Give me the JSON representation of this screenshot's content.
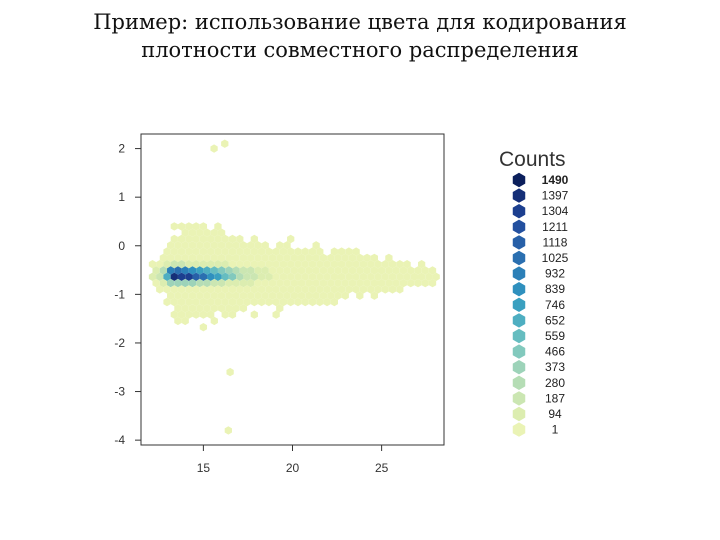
{
  "slide": {
    "title_line1": "Пример: использование цвета для кодирования",
    "title_line2": "плотности совместного распределения"
  },
  "chart_data": {
    "type": "heatmap",
    "subtype": "hexbin",
    "title": "",
    "xlabel": "",
    "ylabel": "",
    "xlim": [
      11.5,
      28.5
    ],
    "ylim": [
      -4.1,
      2.3
    ],
    "x_ticks": [
      15,
      20,
      25
    ],
    "y_ticks": [
      2,
      1,
      0,
      -1,
      -2,
      -3,
      -4
    ],
    "legend": {
      "title": "Counts",
      "placement": "right",
      "levels": [
        1490,
        1397,
        1304,
        1211,
        1118,
        1025,
        932,
        839,
        746,
        652,
        559,
        466,
        373,
        280,
        187,
        94,
        1
      ],
      "colors": [
        "#0b1f5c",
        "#152f78",
        "#1c3f8f",
        "#23509f",
        "#2760a8",
        "#2a6fb0",
        "#2c80b8",
        "#2f90be",
        "#3aa0c0",
        "#4eaec1",
        "#66bdc0",
        "#82c9bd",
        "#9dd3b9",
        "#b5ddb5",
        "#cbe6b2",
        "#dcedb0",
        "#eaf3b5"
      ]
    },
    "density": {
      "peak": [
        13.2,
        -0.6
      ],
      "peak_count": 1490,
      "outliers": [
        [
          16.5,
          -2.6
        ],
        [
          16.4,
          -3.8
        ],
        [
          15.6,
          2.0
        ],
        [
          16.2,
          2.1
        ]
      ]
    }
  }
}
